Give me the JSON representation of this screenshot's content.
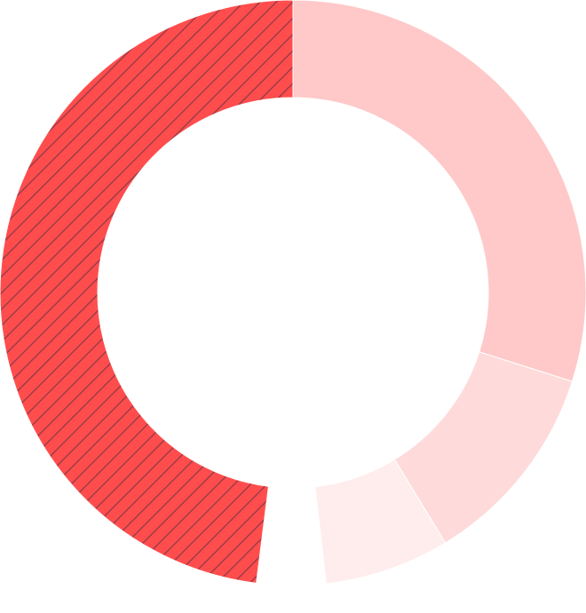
{
  "chart_data": {
    "type": "pie",
    "style": "donut",
    "title": "",
    "legend": "none",
    "slices": [
      {
        "value": 29.9,
        "color": "#ffc9c9",
        "pattern": "none"
      },
      {
        "value": 11.4,
        "color": "#ffdada",
        "pattern": "none"
      },
      {
        "value": 6.9,
        "color": "#ffeded",
        "pattern": "none"
      },
      {
        "value": 3.8,
        "color": "#ffffff",
        "pattern": "none"
      },
      {
        "value": 48.0,
        "color": "#ff4d4d",
        "pattern": "diagonal-hatch"
      }
    ],
    "hatch_color": "#8f3a48"
  }
}
